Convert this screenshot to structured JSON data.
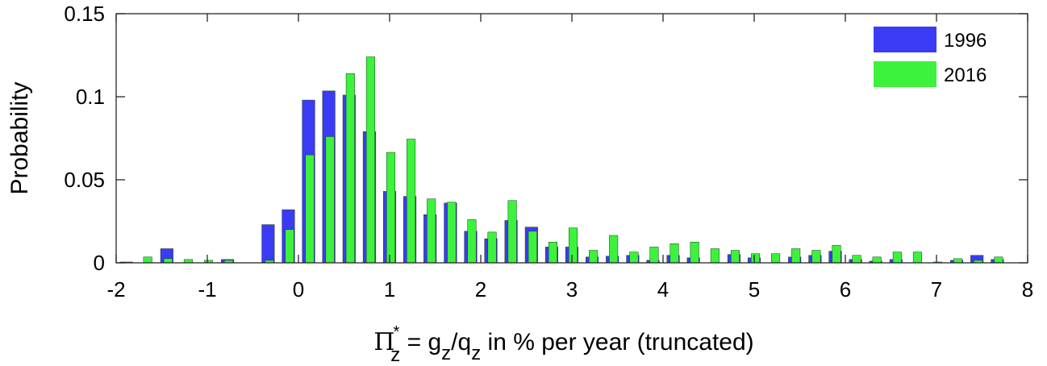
{
  "chart_data": {
    "type": "bar",
    "ylabel": "Probability",
    "xlabel_parts": {
      "symbol": "Π",
      "sup": "*",
      "sub1": "z",
      "eq": " = g",
      "sub2": "z",
      "slash": "/q",
      "sub3": "z",
      "rest": " in % per year (truncated)"
    },
    "xlim": [
      -2,
      8
    ],
    "ylim": [
      0,
      0.15
    ],
    "xticks": [
      "-2",
      "-1",
      "0",
      "1",
      "2",
      "3",
      "4",
      "5",
      "6",
      "7",
      "8"
    ],
    "xtick_values": [
      -2,
      -1,
      0,
      1,
      2,
      3,
      4,
      5,
      6,
      7,
      8
    ],
    "yticks": [
      "0",
      "0.05",
      "0.1",
      "0.15"
    ],
    "ytick_values": [
      0,
      0.05,
      0.1,
      0.15
    ],
    "bin_width": 0.2222,
    "bin_centers": [
      -1.889,
      -1.667,
      -1.444,
      -1.222,
      -1.0,
      -0.778,
      -0.556,
      -0.333,
      -0.111,
      0.111,
      0.333,
      0.556,
      0.778,
      1.0,
      1.222,
      1.444,
      1.667,
      1.889,
      2.111,
      2.333,
      2.556,
      2.778,
      3.0,
      3.222,
      3.444,
      3.667,
      3.889,
      4.111,
      4.333,
      4.556,
      4.778,
      5.0,
      5.222,
      5.444,
      5.667,
      5.889,
      6.111,
      6.333,
      6.556,
      6.778,
      7.0,
      7.222,
      7.444,
      7.667
    ],
    "series": [
      {
        "name": "1996",
        "color": "#3b3bf5",
        "values": [
          0.0005,
          0.0,
          0.0085,
          0.0,
          0.0,
          0.002,
          0.0,
          0.023,
          0.032,
          0.098,
          0.1035,
          0.101,
          0.079,
          0.043,
          0.04,
          0.029,
          0.036,
          0.019,
          0.0145,
          0.0255,
          0.0215,
          0.0095,
          0.0095,
          0.0035,
          0.004,
          0.0045,
          0.0015,
          0.0045,
          0.003,
          0.0,
          0.005,
          0.003,
          0.0,
          0.0035,
          0.0045,
          0.007,
          0.002,
          0.001,
          0.002,
          0.0,
          0.0,
          0.0015,
          0.0045,
          0.002
        ]
      },
      {
        "name": "2016",
        "color": "#3cf23c",
        "values": [
          0.0,
          0.0035,
          0.0025,
          0.002,
          0.0015,
          0.0015,
          0.0,
          0.0015,
          0.02,
          0.065,
          0.076,
          0.114,
          0.124,
          0.0665,
          0.0745,
          0.0385,
          0.0365,
          0.026,
          0.0185,
          0.0375,
          0.019,
          0.0125,
          0.021,
          0.0075,
          0.0165,
          0.0065,
          0.0095,
          0.0115,
          0.0125,
          0.0085,
          0.0075,
          0.0055,
          0.0055,
          0.0085,
          0.0075,
          0.0105,
          0.0045,
          0.0035,
          0.0065,
          0.0065,
          0.0005,
          0.0025,
          0.0015,
          0.0035
        ]
      }
    ],
    "legend_position": "top-right"
  }
}
